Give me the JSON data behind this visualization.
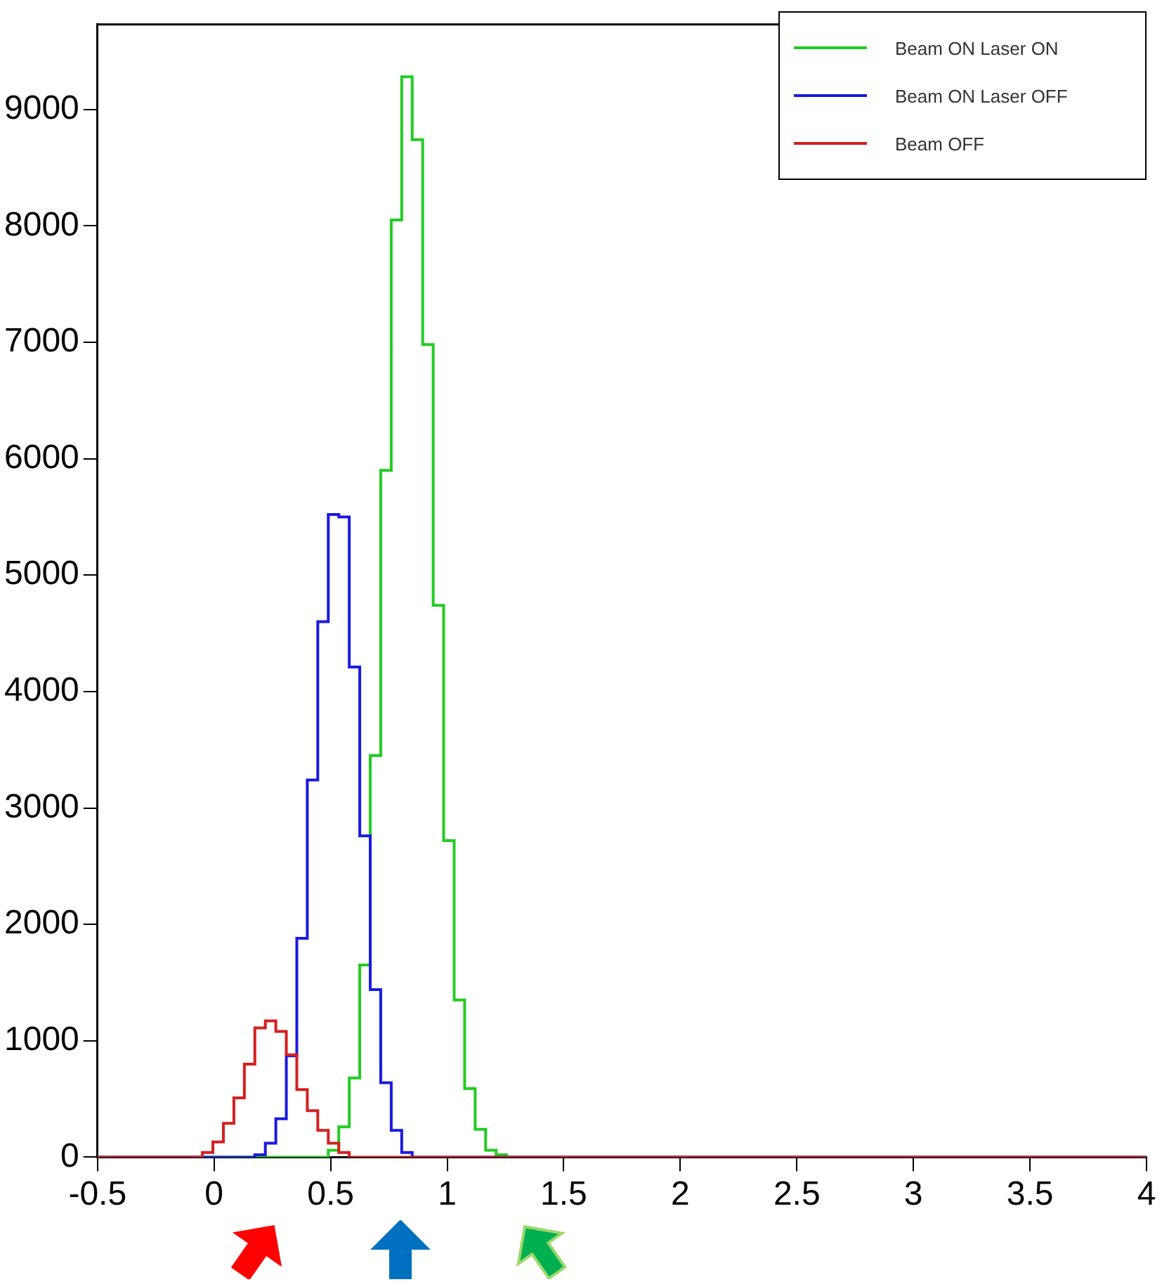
{
  "chart_data": {
    "type": "histogram",
    "legend": "top right",
    "xlim": [
      -0.5,
      4
    ],
    "ylim": [
      0,
      9730
    ],
    "xticks": [
      -0.5,
      0,
      0.5,
      1,
      1.5,
      2,
      2.5,
      3,
      3.5,
      4
    ],
    "yticks": [
      0,
      1000,
      2000,
      3000,
      4000,
      5000,
      6000,
      7000,
      8000,
      9000
    ],
    "bins": [
      -0.5,
      -0.455,
      -0.41,
      -0.365,
      -0.32,
      -0.275,
      -0.23,
      -0.185,
      -0.14,
      -0.095,
      -0.05,
      -0.005,
      0.04,
      0.085,
      0.13,
      0.175,
      0.22,
      0.265,
      0.31,
      0.355,
      0.4,
      0.445,
      0.49,
      0.535,
      0.58,
      0.625,
      0.67,
      0.715,
      0.76,
      0.805,
      0.85,
      0.895,
      0.94,
      0.985,
      1.03,
      1.075,
      1.12,
      1.165,
      1.21,
      1.255,
      1.3,
      1.345,
      1.39,
      1.435,
      1.48,
      1.525,
      1.57,
      1.615,
      1.66,
      1.705,
      1.75,
      1.795,
      1.84,
      1.885,
      1.93,
      1.975,
      2.02,
      2.065,
      2.11,
      2.155,
      2.2,
      2.245,
      2.29,
      2.335,
      2.38,
      2.425,
      2.47,
      2.515,
      2.56,
      2.605,
      2.65,
      2.695,
      2.74,
      2.785,
      2.83,
      2.875,
      2.92,
      2.965,
      3.01,
      3.055,
      3.1,
      3.145,
      3.19,
      3.235,
      3.28,
      3.325,
      3.37,
      3.415,
      3.46,
      3.505,
      3.55,
      3.595,
      3.64,
      3.685,
      3.73,
      3.775,
      3.82,
      3.865,
      3.91,
      3.955,
      4.0
    ],
    "series": [
      {
        "name": "Beam ON Laser ON",
        "color": "#22cc22",
        "values": [
          0,
          0,
          0,
          0,
          0,
          0,
          0,
          0,
          0,
          0,
          0,
          0,
          0,
          0,
          0,
          0,
          0,
          0,
          0,
          0,
          0,
          0,
          60,
          260,
          680,
          1650,
          3450,
          5900,
          8050,
          9280,
          8740,
          6980,
          4740,
          2720,
          1350,
          590,
          240,
          60,
          20,
          0,
          0,
          0,
          0,
          0,
          0,
          0,
          0,
          0,
          0,
          0,
          0,
          0,
          0,
          0,
          0,
          0,
          0,
          0,
          0,
          0,
          0,
          0,
          0,
          0,
          0,
          0,
          0,
          0,
          0,
          0,
          0,
          0,
          0,
          0,
          0,
          0,
          0,
          0,
          0,
          0,
          0,
          0,
          0,
          0,
          0,
          0,
          0,
          0,
          0,
          0,
          0,
          0,
          0,
          0,
          0,
          0,
          0,
          0,
          0,
          0
        ]
      },
      {
        "name": "Beam ON Laser OFF",
        "color": "#1a1ae0",
        "values": [
          0,
          0,
          0,
          0,
          0,
          0,
          0,
          0,
          0,
          0,
          0,
          0,
          0,
          0,
          0,
          20,
          120,
          330,
          870,
          1880,
          3240,
          4600,
          5520,
          5500,
          4210,
          2760,
          1440,
          640,
          230,
          40,
          0,
          0,
          0,
          0,
          0,
          0,
          0,
          0,
          0,
          0,
          0,
          0,
          0,
          0,
          0,
          0,
          0,
          0,
          0,
          0,
          0,
          0,
          0,
          0,
          0,
          0,
          0,
          0,
          0,
          0,
          0,
          0,
          0,
          0,
          0,
          0,
          0,
          0,
          0,
          0,
          0,
          0,
          0,
          0,
          0,
          0,
          0,
          0,
          0,
          0,
          0,
          0,
          0,
          0,
          0,
          0,
          0,
          0,
          0,
          0,
          0,
          0,
          0,
          0,
          0,
          0,
          0,
          0,
          0,
          0
        ]
      },
      {
        "name": "Beam OFF",
        "color": "#d42020",
        "values": [
          0,
          0,
          0,
          0,
          0,
          0,
          0,
          0,
          0,
          0,
          40,
          130,
          290,
          510,
          800,
          1110,
          1170,
          1080,
          880,
          580,
          400,
          230,
          120,
          40,
          0,
          0,
          0,
          0,
          0,
          0,
          0,
          0,
          0,
          0,
          0,
          0,
          0,
          0,
          0,
          0,
          0,
          0,
          0,
          0,
          0,
          0,
          0,
          0,
          0,
          0,
          0,
          0,
          0,
          0,
          0,
          0,
          0,
          0,
          0,
          0,
          0,
          0,
          0,
          0,
          0,
          0,
          0,
          0,
          0,
          0,
          0,
          0,
          0,
          0,
          0,
          0,
          0,
          0,
          0,
          0,
          0,
          0,
          0,
          0,
          0,
          0,
          0,
          0,
          0,
          0,
          0,
          0,
          0,
          0,
          0,
          0,
          0,
          0,
          0,
          0
        ]
      }
    ]
  }
}
